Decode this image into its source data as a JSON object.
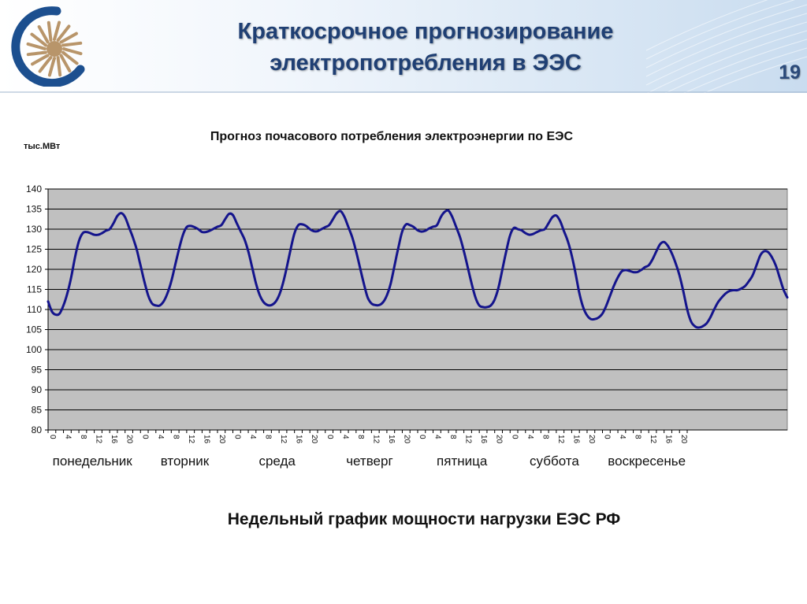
{
  "slide": {
    "title_line1": "Краткосрочное прогнозирование",
    "title_line2": "электропотребления в ЭЭС",
    "page_number": "19",
    "caption": "Недельный график мощности нагрузки ЕЭС РФ"
  },
  "colors": {
    "title": "#1f3f73",
    "plot_background": "#c0c0c0",
    "grid": "#000000",
    "series": "#14148c",
    "logo": "#1c4f8f"
  },
  "chart_data": {
    "type": "line",
    "title": "Прогноз почасового потребления электроэнергии по ЕЭС",
    "ylabel": "тыс.МВт",
    "xlabel": "",
    "ylim": [
      80,
      140
    ],
    "yticks": [
      80,
      85,
      90,
      95,
      100,
      105,
      110,
      115,
      120,
      125,
      130,
      135,
      140
    ],
    "grid": true,
    "legend": "none",
    "hour_tick_labels": [
      "0",
      "4",
      "8",
      "12",
      "16",
      "20"
    ],
    "days": [
      "понедельник",
      "вторник",
      "среда",
      "четверг",
      "пятница",
      "суббота",
      "воскресенье"
    ],
    "series": [
      {
        "values": [
          112.0,
          109.5,
          108.7,
          109.0,
          111.0,
          114.0,
          118.0,
          123.0,
          127.0,
          129.0,
          129.3,
          129.0,
          128.6,
          128.6,
          129.0,
          129.6,
          130.0,
          131.5,
          133.3,
          134.0,
          133.0,
          130.5,
          128.0,
          125.0,
          121.0,
          117.0,
          113.5,
          111.5,
          111.0,
          111.0,
          112.0,
          114.0,
          117.0,
          121.0,
          125.0,
          128.5,
          130.5,
          130.8,
          130.5,
          130.0,
          129.3,
          129.3,
          129.6,
          130.1,
          130.6,
          131.0,
          132.5,
          133.8,
          133.5,
          131.5,
          129.5,
          127.5,
          124.5,
          120.5,
          116.5,
          113.5,
          111.8,
          111.1,
          111.1,
          111.8,
          113.5,
          116.5,
          120.5,
          125.0,
          129.0,
          131.0,
          131.2,
          130.8,
          130.0,
          129.5,
          129.5,
          130.0,
          130.5,
          131.0,
          132.5,
          134.0,
          134.5,
          133.0,
          130.5,
          128.0,
          124.5,
          120.5,
          116.5,
          113.0,
          111.5,
          111.1,
          111.1,
          111.8,
          113.5,
          116.5,
          121.0,
          125.5,
          129.5,
          131.2,
          131.0,
          130.5,
          129.7,
          129.4,
          129.6,
          130.2,
          130.6,
          131.0,
          133.0,
          134.3,
          134.6,
          133.0,
          130.5,
          128.0,
          124.5,
          120.5,
          116.5,
          113.0,
          111.0,
          110.6,
          110.6,
          111.0,
          112.5,
          115.5,
          120.0,
          124.5,
          128.5,
          130.3,
          130.0,
          129.7,
          129.0,
          128.6,
          128.8,
          129.3,
          129.7,
          130.0,
          131.5,
          133.0,
          133.4,
          132.0,
          129.5,
          127.0,
          123.5,
          119.0,
          114.0,
          110.5,
          108.5,
          107.6,
          107.6,
          108.0,
          109.0,
          111.0,
          113.5,
          116.0,
          118.0,
          119.5,
          119.8,
          119.6,
          119.3,
          119.3,
          119.8,
          120.5,
          121.0,
          122.5,
          124.5,
          126.3,
          126.8,
          125.8,
          124.0,
          121.5,
          118.5,
          114.5,
          110.0,
          107.0,
          105.8,
          105.5,
          105.8,
          106.5,
          108.0,
          110.0,
          111.8,
          113.0,
          114.0,
          114.6,
          114.8,
          114.8,
          115.2,
          115.8,
          117.0,
          118.5,
          121.0,
          123.5,
          124.5,
          124.3,
          123.0,
          121.0,
          118.0,
          115.0,
          113.0
        ]
      }
    ]
  }
}
